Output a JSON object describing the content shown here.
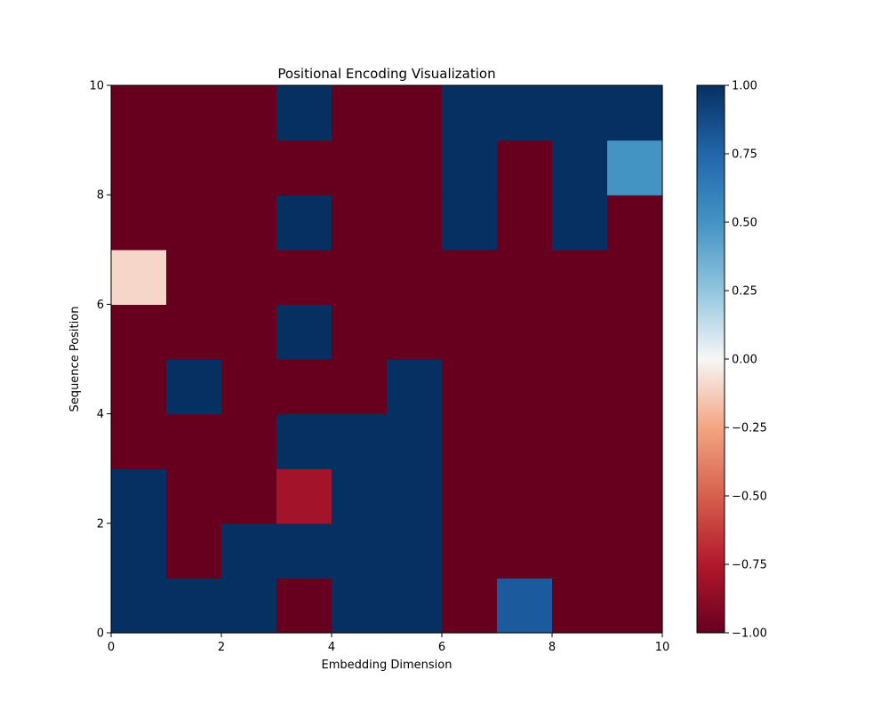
{
  "chart_data": {
    "type": "heatmap",
    "title": "Positional Encoding Visualization",
    "xlabel": "Embedding Dimension",
    "ylabel": "Sequence Position",
    "xlim": [
      0,
      10
    ],
    "ylim": [
      0,
      10
    ],
    "x_ticks": [
      "0",
      "2",
      "4",
      "6",
      "8",
      "10"
    ],
    "y_ticks": [
      "0",
      "2",
      "4",
      "6",
      "8",
      "10"
    ],
    "colormap": "RdBu",
    "vmin": -1.0,
    "vmax": 1.0,
    "colorbar_ticks": [
      "−1.00",
      "−0.75",
      "−0.50",
      "−0.25",
      "0.00",
      "0.25",
      "0.50",
      "0.75",
      "1.00"
    ],
    "grid": false,
    "rows_from_position_0": [
      [
        1,
        1,
        1,
        -1,
        1,
        1,
        -1,
        0.8,
        -1,
        -1
      ],
      [
        1,
        -1,
        1,
        1,
        1,
        1,
        -1,
        -1,
        -1,
        -1
      ],
      [
        1,
        -1,
        -1,
        -0.8,
        1,
        1,
        -1,
        -1,
        -1,
        -1
      ],
      [
        -1,
        -1,
        -1,
        1,
        1,
        1,
        -1,
        -1,
        -1,
        -1
      ],
      [
        -1,
        1,
        -1,
        -1,
        -1,
        1,
        -1,
        -1,
        -1,
        -1
      ],
      [
        -1,
        -1,
        -1,
        1,
        -1,
        -1,
        -1,
        -1,
        -1,
        -1
      ],
      [
        -0.1,
        -1,
        -1,
        -1,
        -1,
        -1,
        -1,
        -1,
        -1,
        -1
      ],
      [
        -1,
        -1,
        -1,
        1,
        -1,
        -1,
        1,
        -1,
        1,
        -1
      ],
      [
        -1,
        -1,
        -1,
        -1,
        -1,
        -1,
        1,
        -1,
        1,
        0.5
      ],
      [
        -1,
        -1,
        -1,
        1,
        -1,
        -1,
        1,
        1,
        1,
        1
      ]
    ]
  }
}
